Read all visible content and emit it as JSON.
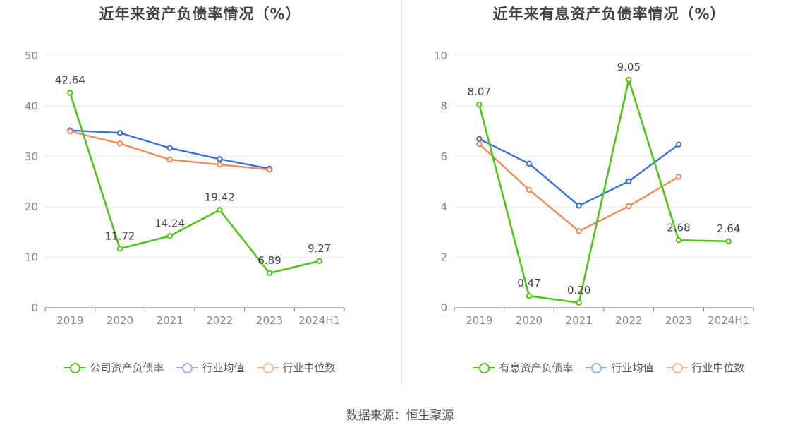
{
  "footer": "数据来源：恒生聚源",
  "chart_data": [
    {
      "type": "line",
      "title": "近年来资产负债率情况（%）",
      "categories": [
        "2019",
        "2020",
        "2021",
        "2022",
        "2023",
        "2024H1"
      ],
      "ylim": [
        0,
        50
      ],
      "yticks": [
        0,
        10,
        20,
        30,
        40,
        50
      ],
      "grid": true,
      "legend_position": "bottom",
      "series": [
        {
          "name": "公司资产负债率",
          "color": "#52c41a",
          "values": [
            42.64,
            11.72,
            14.24,
            19.42,
            6.89,
            9.27
          ],
          "labels": [
            "42.64",
            "11.72",
            "14.24",
            "19.42",
            "6.89",
            "9.27"
          ],
          "emphasis": true
        },
        {
          "name": "行业均值",
          "color": "#3a6fd8",
          "legend_color": "#93b1eb",
          "values": [
            35.2,
            34.7,
            31.7,
            29.5,
            27.6,
            null
          ]
        },
        {
          "name": "行业中位数",
          "color": "#f08b5a",
          "legend_color": "#f6b99a",
          "values": [
            35.0,
            32.6,
            29.4,
            28.4,
            27.4,
            null
          ]
        }
      ]
    },
    {
      "type": "line",
      "title": "近年来有息资产负债率情况（%）",
      "categories": [
        "2019",
        "2020",
        "2021",
        "2022",
        "2023",
        "2024H1"
      ],
      "ylim": [
        0,
        10
      ],
      "yticks": [
        0,
        2,
        4,
        6,
        8,
        10
      ],
      "grid": true,
      "legend_position": "bottom",
      "series": [
        {
          "name": "有息资产负债率",
          "color": "#52c41a",
          "values": [
            8.07,
            0.47,
            0.2,
            9.05,
            2.68,
            2.64
          ],
          "labels": [
            "8.07",
            "0.47",
            "0.20",
            "9.05",
            "2.68",
            "2.64"
          ],
          "emphasis": true
        },
        {
          "name": "行业均值",
          "color": "#3a6fd8",
          "legend_color": "#93b1eb",
          "values": [
            6.7,
            5.72,
            4.05,
            5.02,
            6.48,
            null
          ]
        },
        {
          "name": "行业中位数",
          "color": "#f08b5a",
          "legend_color": "#f6b99a",
          "values": [
            6.5,
            4.68,
            3.04,
            4.03,
            5.2,
            null
          ]
        }
      ]
    }
  ]
}
